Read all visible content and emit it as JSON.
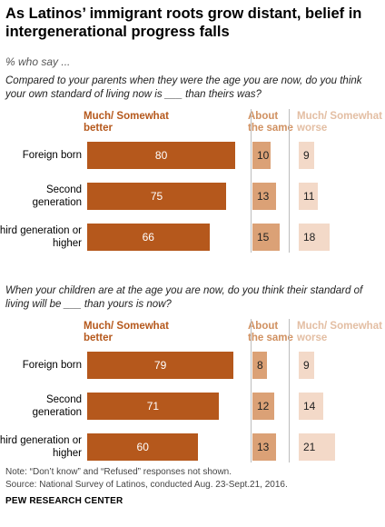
{
  "title": "As Latinos’ immigrant roots grow distant, belief in intergenerational progress falls",
  "subtitle": "% who say ...",
  "colors": {
    "better": "#b5581c",
    "same": "#dba176",
    "worse": "#f3d9c8",
    "better_text": "#b5581c",
    "same_text": "#d09060",
    "worse_text": "#e3bea3"
  },
  "chart_data": [
    {
      "type": "bar",
      "question": "Compared to your parents when they were the age you are now, do you think your own standard of living now is ___ than theirs was?",
      "headers": {
        "better": "Much/ Somewhat better",
        "same": "About the same",
        "worse": "Much/ Somewhat worse"
      },
      "categories": [
        "Foreign born",
        "Second generation",
        "Third generation or higher"
      ],
      "series": [
        {
          "name": "Much/ Somewhat better",
          "values": [
            80,
            75,
            66
          ]
        },
        {
          "name": "About the same",
          "values": [
            10,
            13,
            15
          ]
        },
        {
          "name": "Much/ Somewhat worse",
          "values": [
            9,
            11,
            18
          ]
        }
      ]
    },
    {
      "type": "bar",
      "question": "When your children are at the age you are now, do you think their standard of living will be ___ than yours is now?",
      "headers": {
        "better": "Much/ Somewhat better",
        "same": "About the same",
        "worse": "Much/ Somewhat worse"
      },
      "categories": [
        "Foreign born",
        "Second generation",
        "Third generation or higher"
      ],
      "series": [
        {
          "name": "Much/ Somewhat better",
          "values": [
            79,
            71,
            60
          ]
        },
        {
          "name": "About the same",
          "values": [
            8,
            12,
            13
          ]
        },
        {
          "name": "Much/ Somewhat worse",
          "values": [
            9,
            14,
            21
          ]
        }
      ]
    }
  ],
  "notes": {
    "note": "Note: “Don’t know” and “Refused” responses not shown.",
    "source": "Source: National Survey of Latinos, conducted Aug. 23-Sept.21, 2016.",
    "org": "PEW RESEARCH CENTER"
  }
}
